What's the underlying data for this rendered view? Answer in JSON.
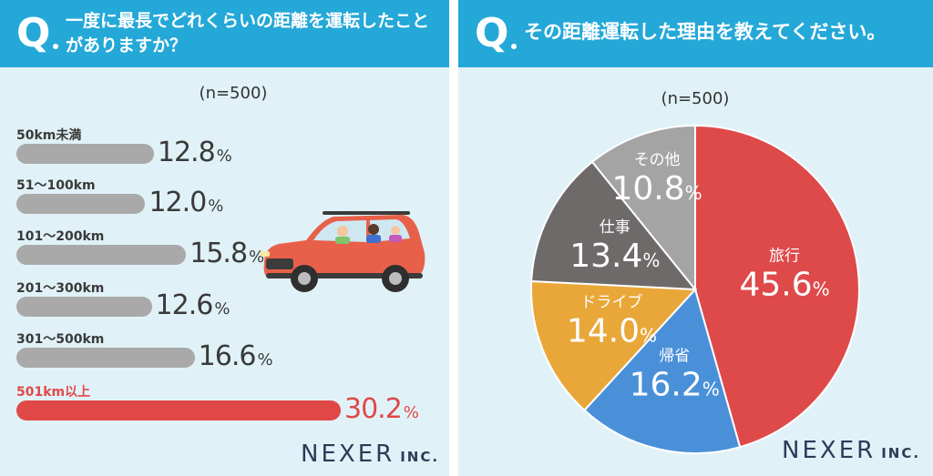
{
  "left": {
    "question": "一度に最長でどれくらいの距離を運転したことがありますか？",
    "sample": "(n=500)",
    "brand": "NEXER",
    "brand_suffix": "INC."
  },
  "right": {
    "question": "その距離運転した理由を教えてください。",
    "sample": "(n=500)",
    "brand": "NEXER",
    "brand_suffix": "INC."
  },
  "colors": {
    "header": "#24a8d8",
    "panel_bg": "#e0f2f7",
    "bar_default": "#a9a9a9",
    "bar_highlight": "#e04848"
  },
  "chart_data": [
    {
      "type": "bar",
      "orientation": "horizontal",
      "title": "一度に最長でどれくらいの距離を運転したことがありますか？",
      "categories": [
        "50km未満",
        "51〜100km",
        "101〜200km",
        "201〜300km",
        "301〜500km",
        "501km以上"
      ],
      "values": [
        12.8,
        12.0,
        15.8,
        12.6,
        16.6,
        30.2
      ],
      "value_labels": [
        "12.8",
        "12.0",
        "15.8",
        "12.6",
        "16.6",
        "30.2"
      ],
      "unit": "%",
      "highlight_index": 5
    },
    {
      "type": "pie",
      "title": "その距離運転した理由を教えてください。",
      "slices": [
        {
          "label": "旅行",
          "value": 45.6,
          "text": "45.6",
          "color": "#de4a4a"
        },
        {
          "label": "帰省",
          "value": 16.2,
          "text": "16.2",
          "color": "#4a90d9"
        },
        {
          "label": "ドライブ",
          "value": 14.0,
          "text": "14.0",
          "color": "#e9a73a"
        },
        {
          "label": "仕事",
          "value": 13.4,
          "text": "13.4",
          "color": "#6e6a69"
        },
        {
          "label": "その他",
          "value": 10.8,
          "text": "10.8",
          "color": "#a4a4a4"
        }
      ],
      "unit": "%"
    }
  ]
}
